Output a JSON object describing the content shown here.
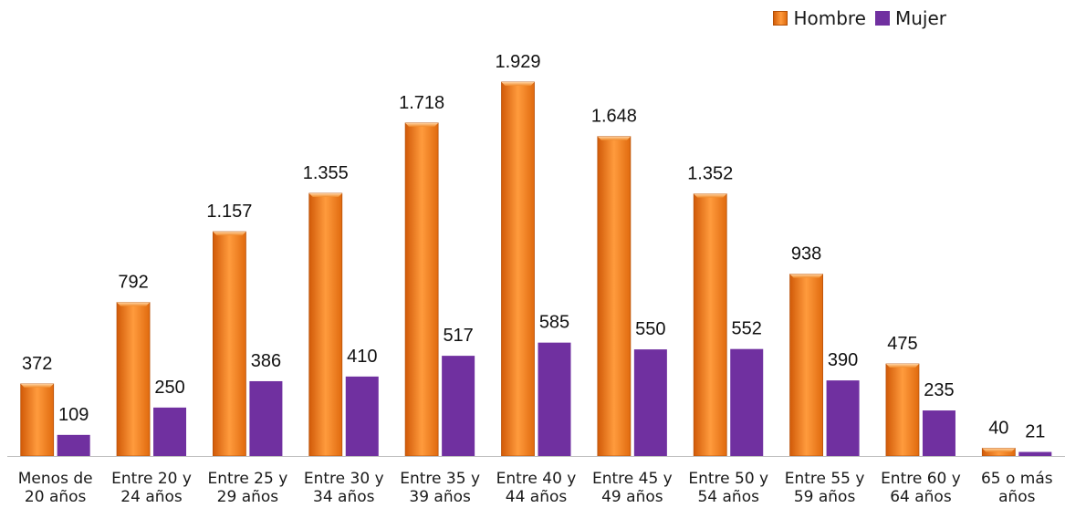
{
  "legend": {
    "hombre": "Hombre",
    "mujer": "Mujer"
  },
  "colors": {
    "hombre": "#f07812",
    "mujer": "#7030a0"
  },
  "chart_data": {
    "type": "bar",
    "title": "",
    "xlabel": "",
    "ylabel": "",
    "ylim": [
      0,
      2100
    ],
    "grid": false,
    "legend_position": "top-right",
    "categories": [
      [
        "Menos de",
        "20 años"
      ],
      [
        "Entre 20 y",
        "24 años"
      ],
      [
        "Entre 25 y",
        "29 años"
      ],
      [
        "Entre 30 y",
        "34 años"
      ],
      [
        "Entre 35 y",
        "39 años"
      ],
      [
        "Entre 40 y",
        "44 años"
      ],
      [
        "Entre 45 y",
        "49 años"
      ],
      [
        "Entre 50 y",
        "54 años"
      ],
      [
        "Entre 55 y",
        "59 años"
      ],
      [
        "Entre 60 y",
        "64 años"
      ],
      [
        "65 o más",
        "años"
      ]
    ],
    "series": [
      {
        "name": "Hombre",
        "values": [
          372,
          792,
          1157,
          1355,
          1718,
          1929,
          1648,
          1352,
          938,
          475,
          40
        ],
        "labels": [
          "372",
          "792",
          "1.157",
          "1.355",
          "1.718",
          "1.929",
          "1.648",
          "1.352",
          "938",
          "475",
          "40"
        ]
      },
      {
        "name": "Mujer",
        "values": [
          109,
          250,
          386,
          410,
          517,
          585,
          550,
          552,
          390,
          235,
          21
        ],
        "labels": [
          "109",
          "250",
          "386",
          "410",
          "517",
          "585",
          "550",
          "552",
          "390",
          "235",
          "21"
        ]
      }
    ]
  }
}
